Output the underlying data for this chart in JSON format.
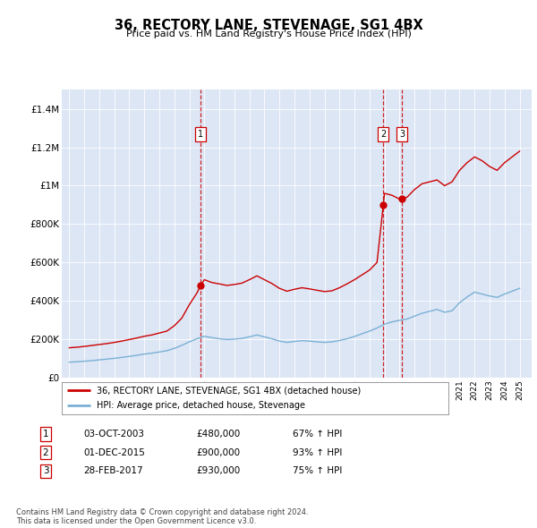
{
  "title": "36, RECTORY LANE, STEVENAGE, SG1 4BX",
  "subtitle": "Price paid vs. HM Land Registry's House Price Index (HPI)",
  "background_color": "#dce6f5",
  "plot_bg_color": "#dce6f5",
  "ylim": [
    0,
    1500000
  ],
  "yticks": [
    0,
    200000,
    400000,
    600000,
    800000,
    1000000,
    1200000,
    1400000
  ],
  "ytick_labels": [
    "£0",
    "£200K",
    "£400K",
    "£600K",
    "£800K",
    "£1M",
    "£1.2M",
    "£1.4M"
  ],
  "xmin": 1994.5,
  "xmax": 2025.8,
  "red_line_color": "#cc0000",
  "blue_line_color": "#7ab0d4",
  "sale_marker_color": "#cc0000",
  "sale_vline_color": "#cc0000",
  "legend_label_red": "36, RECTORY LANE, STEVENAGE, SG1 4BX (detached house)",
  "legend_label_blue": "HPI: Average price, detached house, Stevenage",
  "footer": "Contains HM Land Registry data © Crown copyright and database right 2024.\nThis data is licensed under the Open Government Licence v3.0.",
  "sales": [
    {
      "num": 1,
      "date": "03-OCT-2003",
      "price": "£480,000",
      "hpi_pct": "67% ↑ HPI",
      "year": 2003.75,
      "price_val": 480000
    },
    {
      "num": 2,
      "date": "01-DEC-2015",
      "price": "£900,000",
      "hpi_pct": "93% ↑ HPI",
      "year": 2015.92,
      "price_val": 900000
    },
    {
      "num": 3,
      "date": "28-FEB-2017",
      "price": "£930,000",
      "hpi_pct": "75% ↑ HPI",
      "year": 2017.15,
      "price_val": 930000
    }
  ],
  "red_x": [
    1995,
    1995.5,
    1996,
    1996.5,
    1997,
    1997.5,
    1998,
    1998.5,
    1999,
    1999.5,
    2000,
    2000.5,
    2001,
    2001.5,
    2002,
    2002.5,
    2003,
    2003.5,
    2003.75,
    2004,
    2004.5,
    2005,
    2005.5,
    2006,
    2006.5,
    2007,
    2007.5,
    2008,
    2008.5,
    2009,
    2009.5,
    2010,
    2010.5,
    2011,
    2011.5,
    2012,
    2012.5,
    2013,
    2013.5,
    2014,
    2014.5,
    2015,
    2015.5,
    2015.92,
    2016,
    2016.5,
    2017,
    2017.15,
    2017.5,
    2018,
    2018.5,
    2019,
    2019.5,
    2020,
    2020.5,
    2021,
    2021.5,
    2022,
    2022.5,
    2023,
    2023.5,
    2024,
    2024.5,
    2025
  ],
  "red_y": [
    155000,
    158000,
    162000,
    167000,
    172000,
    177000,
    183000,
    190000,
    198000,
    206000,
    215000,
    222000,
    232000,
    242000,
    270000,
    310000,
    380000,
    440000,
    480000,
    510000,
    495000,
    488000,
    480000,
    485000,
    492000,
    510000,
    530000,
    510000,
    490000,
    465000,
    450000,
    460000,
    468000,
    462000,
    455000,
    448000,
    452000,
    468000,
    488000,
    510000,
    535000,
    560000,
    600000,
    900000,
    960000,
    950000,
    930000,
    930000,
    940000,
    980000,
    1010000,
    1020000,
    1030000,
    1000000,
    1020000,
    1080000,
    1120000,
    1150000,
    1130000,
    1100000,
    1080000,
    1120000,
    1150000,
    1180000
  ],
  "blue_x": [
    1995,
    1995.5,
    1996,
    1996.5,
    1997,
    1997.5,
    1998,
    1998.5,
    1999,
    1999.5,
    2000,
    2000.5,
    2001,
    2001.5,
    2002,
    2002.5,
    2003,
    2003.5,
    2004,
    2004.5,
    2005,
    2005.5,
    2006,
    2006.5,
    2007,
    2007.5,
    2008,
    2008.5,
    2009,
    2009.5,
    2010,
    2010.5,
    2011,
    2011.5,
    2012,
    2012.5,
    2013,
    2013.5,
    2014,
    2014.5,
    2015,
    2015.5,
    2016,
    2016.5,
    2017,
    2017.5,
    2018,
    2018.5,
    2019,
    2019.5,
    2020,
    2020.5,
    2021,
    2021.5,
    2022,
    2022.5,
    2023,
    2023.5,
    2024,
    2024.5,
    2025
  ],
  "blue_y": [
    80000,
    82000,
    85000,
    88000,
    92000,
    96000,
    100000,
    105000,
    110000,
    116000,
    122000,
    127000,
    133000,
    140000,
    152000,
    168000,
    186000,
    202000,
    215000,
    208000,
    202000,
    198000,
    200000,
    204000,
    212000,
    222000,
    212000,
    202000,
    190000,
    183000,
    188000,
    192000,
    190000,
    186000,
    183000,
    186000,
    193000,
    202000,
    214000,
    228000,
    242000,
    258000,
    278000,
    290000,
    298000,
    305000,
    320000,
    335000,
    345000,
    355000,
    340000,
    348000,
    390000,
    420000,
    445000,
    435000,
    425000,
    418000,
    435000,
    450000,
    465000
  ]
}
